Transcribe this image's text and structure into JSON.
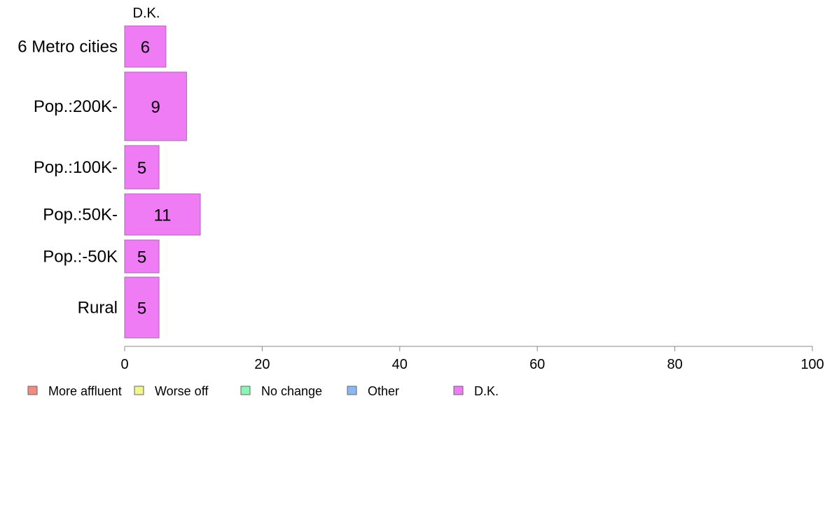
{
  "chart_data": {
    "type": "bar",
    "orientation": "horizontal",
    "stacked": true,
    "categories": [
      "6 Metro cities",
      "Pop.:200K-",
      "Pop.:100K-",
      "Pop.:50K-",
      "Pop.:-50K",
      "Rural"
    ],
    "series": [
      {
        "name": "More affluent",
        "color": "#f28b82",
        "values": [
          0,
          0,
          0,
          0,
          0,
          0
        ]
      },
      {
        "name": "Worse off",
        "color": "#f2f58b",
        "values": [
          0,
          0,
          0,
          0,
          0,
          0
        ]
      },
      {
        "name": "No change",
        "color": "#8bf5b5",
        "values": [
          0,
          0,
          0,
          0,
          0,
          0
        ]
      },
      {
        "name": "Other",
        "color": "#8bb8f5",
        "values": [
          0,
          0,
          0,
          0,
          0,
          0
        ]
      },
      {
        "name": "D.K.",
        "color": "#f07cf5",
        "values": [
          6,
          9,
          5,
          11,
          5,
          5
        ]
      }
    ],
    "data_labels": [
      "6",
      "9",
      "5",
      "11",
      "5",
      "5"
    ],
    "series_header": "D.K.",
    "xlim": [
      0,
      100
    ],
    "xticks": [
      "0",
      "20",
      "40",
      "60",
      "80",
      "100"
    ],
    "grid": false,
    "legend_position": "bottom"
  }
}
